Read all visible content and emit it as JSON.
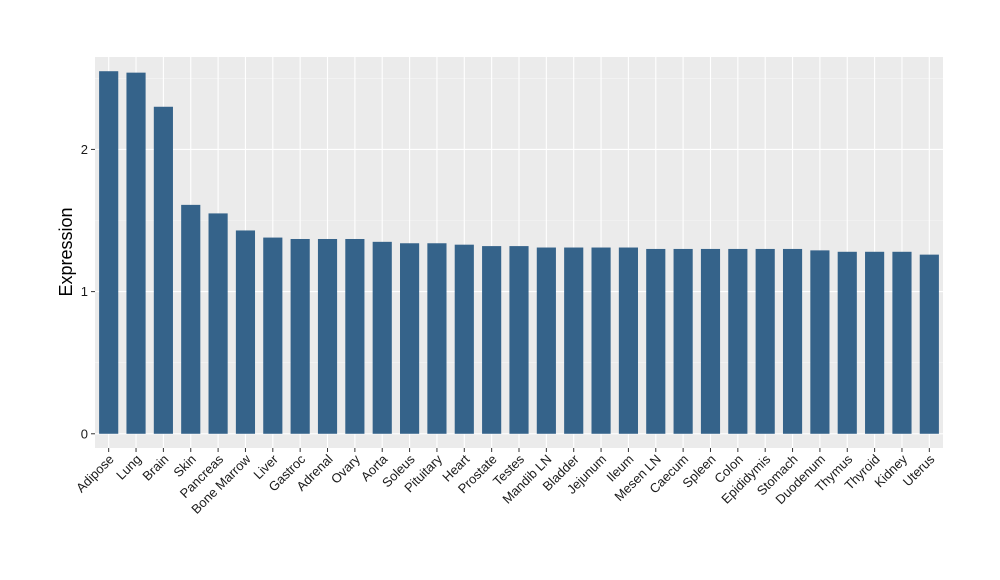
{
  "chart_data": {
    "type": "bar",
    "title": "",
    "xlabel": "",
    "ylabel": "Expression",
    "ylim": [
      -0.1,
      2.65
    ],
    "yticks": [
      0,
      1,
      2
    ],
    "grid": true,
    "categories": [
      "Adipose",
      "Lung",
      "Brain",
      "Skin",
      "Pancreas",
      "Bone Marrow",
      "Liver",
      "Gastroc",
      "Adrenal",
      "Ovary",
      "Aorta",
      "Soleus",
      "Pituitary",
      "Heart",
      "Prostate",
      "Testes",
      "Mandib LN",
      "Bladder",
      "Jejunum",
      "Ileum",
      "Mesen LN",
      "Caecum",
      "Spleen",
      "Colon",
      "Epididymis",
      "Stomach",
      "Duodenum",
      "Thymus",
      "Thyroid",
      "Kidney",
      "Uterus"
    ],
    "values": [
      2.55,
      2.54,
      2.3,
      1.61,
      1.55,
      1.43,
      1.38,
      1.37,
      1.37,
      1.37,
      1.35,
      1.34,
      1.34,
      1.33,
      1.32,
      1.32,
      1.31,
      1.31,
      1.31,
      1.31,
      1.3,
      1.3,
      1.3,
      1.3,
      1.3,
      1.3,
      1.29,
      1.28,
      1.28,
      1.28,
      1.26
    ],
    "colors": {
      "bar": "#35638A",
      "panel": "#EBEBEB",
      "grid_major": "#FFFFFF",
      "grid_minor": "#F5F5F5"
    }
  }
}
